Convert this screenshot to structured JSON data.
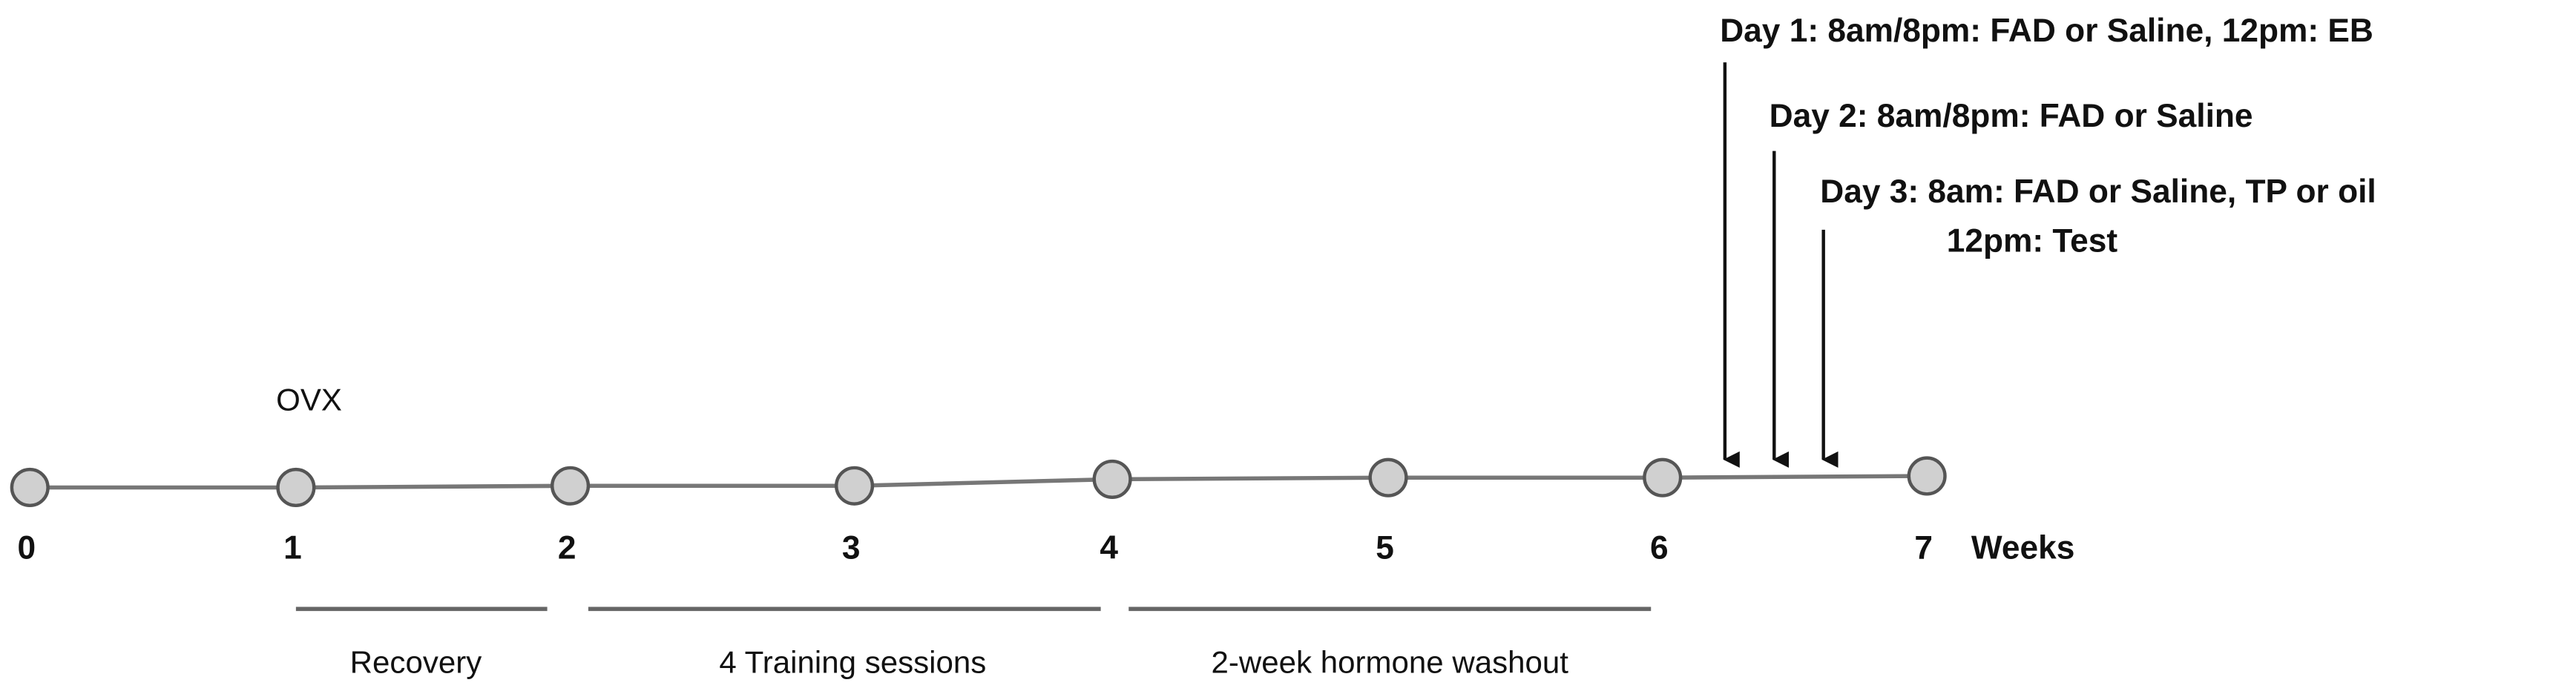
{
  "timeline": {
    "weeks": [
      "0",
      "1",
      "2",
      "3",
      "4",
      "5",
      "6",
      "7"
    ],
    "unit_label": "Weeks",
    "event_label": "OVX",
    "periods": [
      "Recovery",
      "4 Training sessions",
      "2-week hormone washout"
    ],
    "days": [
      "Day 1: 8am/8pm: FAD or Saline, 12pm: EB",
      "Day 2: 8am/8pm: FAD or Saline",
      "Day 3: 8am: FAD or Saline, TP or oil",
      "12pm: Test"
    ]
  }
}
